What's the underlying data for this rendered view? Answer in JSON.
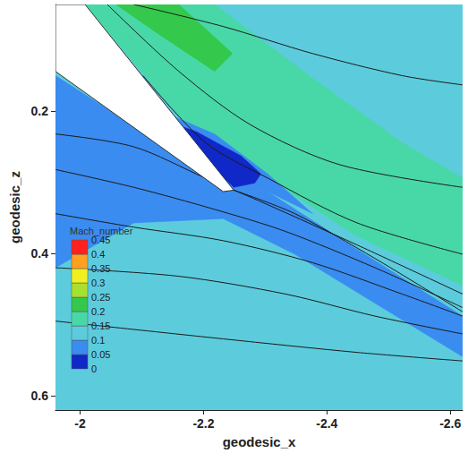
{
  "chart_data": {
    "type": "contour",
    "xlabel": "geodesic_x",
    "ylabel": "geodesic_z",
    "xlim": [
      -1.96,
      -2.62
    ],
    "ylim": [
      0.05,
      0.62
    ],
    "xticks": [
      -2,
      -2.2,
      -2.4,
      -2.6
    ],
    "yticks": [
      0.2,
      0.4,
      0.6
    ],
    "grid": false,
    "colorbar": {
      "title": "Mach_number",
      "range": [
        0,
        0.45
      ],
      "ticks": [
        0,
        0.05,
        0.1,
        0.15,
        0.2,
        0.25,
        0.3,
        0.35,
        0.4,
        0.45
      ],
      "colors": [
        "#1028c8",
        "#3a8cf0",
        "#5cccdc",
        "#48d8a8",
        "#34c84c",
        "#a8e030",
        "#f0f020",
        "#ffa020",
        "#ff2020"
      ]
    },
    "contours": [
      {
        "level": 0.1,
        "points": [
          [
            -1.96,
            0.05
          ],
          [
            -2.62,
            0.05
          ],
          [
            -2.62,
            0.62
          ],
          [
            -1.96,
            0.62
          ]
        ]
      },
      {
        "level": 0.05,
        "points": [
          [
            -1.96,
            0.15
          ],
          [
            -2.249,
            0.311
          ],
          [
            -2.304,
            0.313
          ],
          [
            -2.449,
            0.394
          ],
          [
            -2.62,
            0.488
          ],
          [
            -2.62,
            0.545
          ],
          [
            -2.478,
            0.47
          ],
          [
            -2.348,
            0.401
          ],
          [
            -2.232,
            0.351
          ],
          [
            -2.087,
            0.357
          ],
          [
            -1.96,
            0.42
          ]
        ]
      },
      {
        "level": 0.15,
        "points": [
          [
            -2.008,
            0.05
          ],
          [
            -2.218,
            0.05
          ],
          [
            -2.362,
            0.144
          ],
          [
            -2.522,
            0.244
          ],
          [
            -2.62,
            0.294
          ],
          [
            -2.62,
            0.445
          ],
          [
            -2.449,
            0.376
          ],
          [
            -2.304,
            0.294
          ],
          [
            -2.16,
            0.207
          ]
        ]
      },
      {
        "level": 0.2,
        "points": [
          [
            -2.058,
            0.05
          ],
          [
            -2.16,
            0.05
          ],
          [
            -2.247,
            0.119
          ],
          [
            -2.218,
            0.144
          ],
          [
            -2.131,
            0.094
          ]
        ]
      },
      {
        "level": 0.05,
        "points": [
          [
            -2.116,
            0.194
          ],
          [
            -2.249,
            0.311
          ],
          [
            -2.304,
            0.313
          ],
          [
            -2.377,
            0.344
          ],
          [
            -2.304,
            0.288
          ],
          [
            -2.218,
            0.232
          ]
        ]
      },
      {
        "level": 0,
        "points": [
          [
            -2.138,
            0.213
          ],
          [
            -2.249,
            0.307
          ],
          [
            -2.283,
            0.301
          ],
          [
            -2.293,
            0.288
          ],
          [
            -2.261,
            0.263
          ],
          [
            -2.189,
            0.229
          ]
        ]
      }
    ],
    "body": {
      "color": "#ffffff",
      "points": [
        [
          -1.96,
          0.05
        ],
        [
          -2.008,
          0.05
        ],
        [
          -2.249,
          0.311
        ],
        [
          -2.232,
          0.313
        ],
        [
          -1.96,
          0.144
        ]
      ]
    },
    "streamlines": [
      {
        "color": "#1a1a1a",
        "values": [
          [
            -2.087,
            0.05
          ],
          [
            -2.232,
            0.081
          ],
          [
            -2.377,
            0.119
          ],
          [
            -2.522,
            0.15
          ],
          [
            -2.62,
            0.163
          ]
        ]
      },
      {
        "color": "#1a1a1a",
        "values": [
          [
            -2.044,
            0.05
          ],
          [
            -2.16,
            0.144
          ],
          [
            -2.276,
            0.219
          ],
          [
            -2.42,
            0.275
          ],
          [
            -2.62,
            0.307
          ]
        ]
      },
      {
        "color": "#1a1a1a",
        "values": [
          [
            -2.102,
            0.15
          ],
          [
            -2.203,
            0.244
          ],
          [
            -2.304,
            0.294
          ],
          [
            -2.449,
            0.357
          ],
          [
            -2.62,
            0.401
          ]
        ]
      },
      {
        "color": "#1a1a1a",
        "values": [
          [
            -1.96,
            0.232
          ],
          [
            -2.087,
            0.25
          ],
          [
            -2.203,
            0.294
          ],
          [
            -2.29,
            0.326
          ],
          [
            -2.449,
            0.388
          ],
          [
            -2.62,
            0.457
          ]
        ]
      },
      {
        "color": "#1a1a1a",
        "values": [
          [
            -1.96,
            0.282
          ],
          [
            -2.087,
            0.307
          ],
          [
            -2.218,
            0.338
          ],
          [
            -2.333,
            0.369
          ],
          [
            -2.478,
            0.42
          ],
          [
            -2.62,
            0.476
          ]
        ]
      },
      {
        "color": "#1a1a1a",
        "values": [
          [
            -1.96,
            0.344
          ],
          [
            -2.087,
            0.363
          ],
          [
            -2.232,
            0.382
          ],
          [
            -2.377,
            0.413
          ],
          [
            -2.522,
            0.457
          ],
          [
            -2.62,
            0.488
          ]
        ]
      },
      {
        "color": "#1a1a1a",
        "values": [
          [
            -1.96,
            0.42
          ],
          [
            -2.16,
            0.432
          ],
          [
            -2.333,
            0.457
          ],
          [
            -2.478,
            0.488
          ],
          [
            -2.62,
            0.513
          ]
        ]
      },
      {
        "color": "#1a1a1a",
        "values": [
          [
            -1.96,
            0.495
          ],
          [
            -2.232,
            0.52
          ],
          [
            -2.449,
            0.539
          ],
          [
            -2.62,
            0.551
          ]
        ]
      },
      {
        "color": "#1a1a1a",
        "values": [
          [
            -2.249,
            0.311
          ],
          [
            -2.348,
            0.344
          ],
          [
            -2.478,
            0.407
          ],
          [
            -2.62,
            0.482
          ]
        ]
      }
    ]
  }
}
